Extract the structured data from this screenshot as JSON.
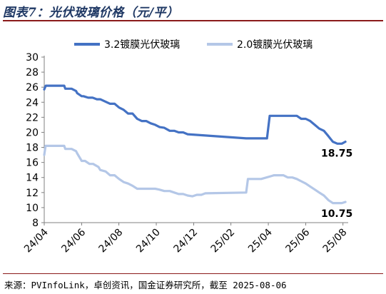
{
  "figure_title": "图表7：光伏玻璃价格（元/平）",
  "source_text": "来源：PVInfoLink，卓创资讯，国金证券研究所，截至 2025-08-06",
  "colors": {
    "series_1": "#4472c4",
    "series_2": "#b4c7e7",
    "title": "#1f3864",
    "rule": "#8b1a1a"
  },
  "chart_data": {
    "type": "line",
    "title": "",
    "xlabel": "",
    "ylabel": "",
    "ylim": [
      8,
      30
    ],
    "yticks": [
      8,
      10,
      12,
      14,
      16,
      18,
      20,
      22,
      24,
      26,
      28,
      30
    ],
    "xlim": [
      2024.25,
      2025.6
    ],
    "xticks": [
      {
        "x": 2024.25,
        "label": "24/04"
      },
      {
        "x": 2024.417,
        "label": "24/06"
      },
      {
        "x": 2024.583,
        "label": "24/08"
      },
      {
        "x": 2024.75,
        "label": "24/10"
      },
      {
        "x": 2024.917,
        "label": "24/12"
      },
      {
        "x": 2025.083,
        "label": "25/02"
      },
      {
        "x": 2025.25,
        "label": "25/04"
      },
      {
        "x": 2025.417,
        "label": "25/06"
      },
      {
        "x": 2025.583,
        "label": "25/08"
      }
    ],
    "grid": false,
    "legend_position": "top",
    "series": [
      {
        "name": "3.2镀膜光伏玻璃",
        "color": "#4472c4",
        "end_label": "18.75",
        "x": [
          2024.25,
          2024.257,
          2024.339,
          2024.344,
          2024.372,
          2024.392,
          2024.397,
          2024.417,
          2024.425,
          2024.446,
          2024.466,
          2024.485,
          2024.5,
          2024.544,
          2024.564,
          2024.584,
          2024.604,
          2024.624,
          2024.644,
          2024.665,
          2024.685,
          2024.705,
          2024.725,
          2024.745,
          2024.765,
          2024.786,
          2024.81,
          2024.83,
          2024.85,
          2024.87,
          2024.89,
          2025.151,
          2025.159,
          2025.244,
          2025.256,
          2025.276,
          2025.296,
          2025.317,
          2025.337,
          2025.357,
          2025.377,
          2025.397,
          2025.417,
          2025.437,
          2025.457,
          2025.477,
          2025.498,
          2025.518,
          2025.538,
          2025.558,
          2025.578,
          2025.594
        ],
        "values": [
          25.7,
          26.2,
          26.2,
          25.8,
          25.8,
          25.5,
          25.2,
          24.8,
          24.8,
          24.6,
          24.6,
          24.4,
          24.4,
          23.8,
          23.8,
          23.3,
          23.0,
          22.5,
          22.5,
          21.8,
          21.5,
          21.5,
          21.2,
          21.0,
          20.7,
          20.6,
          20.2,
          20.2,
          20.0,
          20.0,
          19.75,
          19.2,
          19.2,
          19.2,
          22.2,
          22.2,
          22.2,
          22.2,
          22.2,
          22.2,
          22.2,
          21.8,
          21.8,
          21.5,
          21.0,
          20.5,
          20.2,
          19.5,
          18.75,
          18.5,
          18.5,
          18.75
        ]
      },
      {
        "name": "2.0镀膜光伏玻璃",
        "color": "#b4c7e7",
        "end_label": "10.75",
        "x": [
          2024.25,
          2024.256,
          2024.339,
          2024.344,
          2024.372,
          2024.392,
          2024.397,
          2024.417,
          2024.432,
          2024.452,
          2024.468,
          2024.492,
          2024.5,
          2024.524,
          2024.544,
          2024.564,
          2024.584,
          2024.604,
          2024.624,
          2024.644,
          2024.665,
          2024.685,
          2024.745,
          2024.762,
          2024.786,
          2024.81,
          2024.83,
          2024.85,
          2024.87,
          2024.89,
          2024.911,
          2024.931,
          2024.951,
          2024.969,
          2025.151,
          2025.159,
          2025.199,
          2025.218,
          2025.276,
          2025.296,
          2025.317,
          2025.337,
          2025.357,
          2025.377,
          2025.397,
          2025.417,
          2025.437,
          2025.457,
          2025.477,
          2025.498,
          2025.518,
          2025.538,
          2025.558,
          2025.578,
          2025.594
        ],
        "values": [
          17.0,
          18.2,
          18.2,
          17.8,
          17.8,
          17.5,
          17.2,
          16.2,
          16.2,
          15.8,
          15.8,
          15.4,
          15.0,
          14.8,
          14.3,
          14.3,
          13.8,
          13.4,
          13.2,
          12.9,
          12.5,
          12.5,
          12.5,
          12.4,
          12.2,
          12.2,
          12.0,
          11.8,
          11.8,
          11.6,
          11.5,
          11.7,
          11.7,
          11.9,
          12.0,
          13.8,
          13.8,
          13.8,
          14.3,
          14.3,
          14.3,
          14.0,
          14.0,
          13.8,
          13.5,
          13.2,
          12.8,
          12.4,
          12.0,
          11.6,
          11.0,
          10.6,
          10.6,
          10.6,
          10.75
        ]
      }
    ]
  }
}
